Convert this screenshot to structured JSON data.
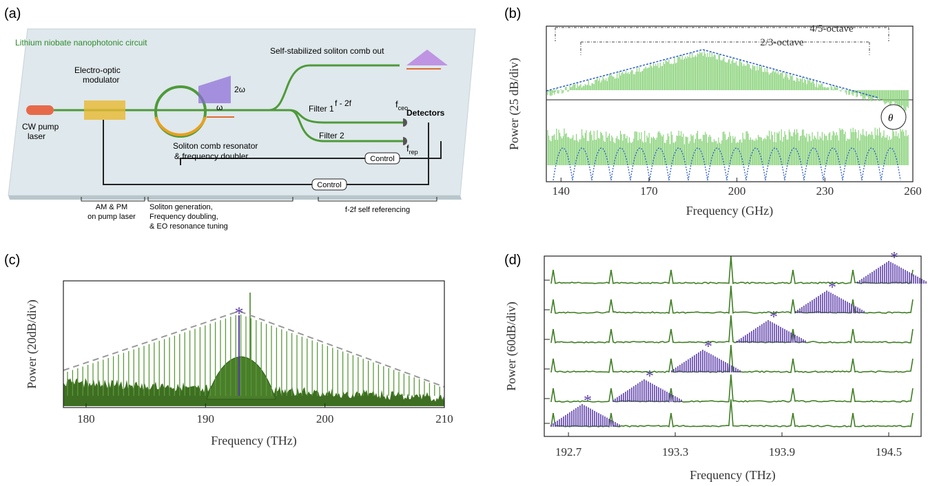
{
  "panel_labels": [
    "(a)",
    "(b)",
    "(c)",
    "(d)"
  ],
  "diagram": {
    "title": "Lithium niobate nanophotonic circuit",
    "modulator": [
      "Electro-optic",
      "modulator"
    ],
    "laser": [
      "CW pump",
      "laser"
    ],
    "comb_out": "Self-stabilized soliton comb out",
    "omega": "ω",
    "two_omega": "2ω",
    "f2f": "f - 2f",
    "fceo": {
      "main": "f",
      "sub": "ceo"
    },
    "frep": {
      "main": "f",
      "sub": "rep"
    },
    "filter1": "Filter 1",
    "filter2": "Filter 2",
    "detectors": "Detectors",
    "resonator": [
      "Soliton comb resonator",
      "& frequency doubler"
    ],
    "control": "Control",
    "bottom": [
      [
        "AM & PM",
        "on pump laser"
      ],
      [
        "Soliton generation,",
        "Frequency doubling,",
        "& EO resonance tuning"
      ],
      [
        "f-2f self referencing"
      ]
    ]
  },
  "chart_data": [
    {
      "type": "line",
      "xlabel": "Frequency (GHz)",
      "ylabel": "Power (25 dB/div)",
      "xlim": [
        135,
        260
      ],
      "xticks": [
        140,
        170,
        200,
        230,
        260
      ],
      "annotations": [
        "4/5-octave",
        "2/3-octave",
        "θ"
      ]
    },
    {
      "type": "line",
      "xlabel": "Frequency (THz)",
      "ylabel": "Power (20dB/div)",
      "xlim": [
        178.1,
        210
      ],
      "xticks": [
        180,
        190,
        200,
        210
      ],
      "annotations": [
        "*"
      ]
    },
    {
      "type": "line",
      "xlabel": "Frequency (THz)",
      "ylabel": "Power (60dB/div)",
      "xlim": [
        192.564,
        194.682
      ],
      "xticks": [
        192.7,
        193.3,
        193.9,
        194.5
      ],
      "annotations": [
        "*"
      ]
    }
  ]
}
